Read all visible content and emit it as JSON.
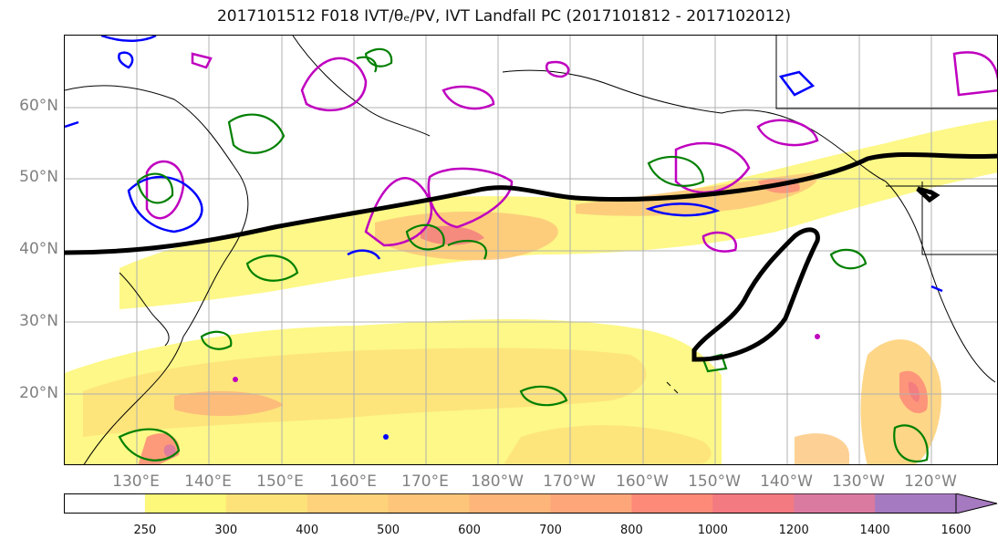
{
  "title": "2017101512 F018 IVT/θₑ/PV, IVT Landfall PC (2017101812 - 2017102012)",
  "lat_labels": [
    "60°N",
    "50°N",
    "40°N",
    "30°N",
    "20°N"
  ],
  "lon_labels": [
    "130°E",
    "140°E",
    "150°E",
    "160°E",
    "170°E",
    "180°W",
    "170°W",
    "160°W",
    "150°W",
    "140°W",
    "130°W",
    "120°W"
  ],
  "colorbar": {
    "ticks": [
      "250",
      "300",
      "400",
      "500",
      "600",
      "700",
      "800",
      "1000",
      "1200",
      "1400",
      "1600"
    ],
    "colors": [
      "#ffffff",
      "#fdf77a",
      "#fde27a",
      "#fdd27a",
      "#fdc57a",
      "#fdb57a",
      "#fda67a",
      "#fd8a78",
      "#f27a80",
      "#da7aa0",
      "#a67ac0"
    ]
  },
  "colors": {
    "pv_contour": "#008000",
    "theta_contour": "#bf00bf",
    "cold_contour": "#0000ff",
    "landfall_pc": "#000000",
    "coastline": "#000000",
    "grid": "#b0b0b0"
  }
}
